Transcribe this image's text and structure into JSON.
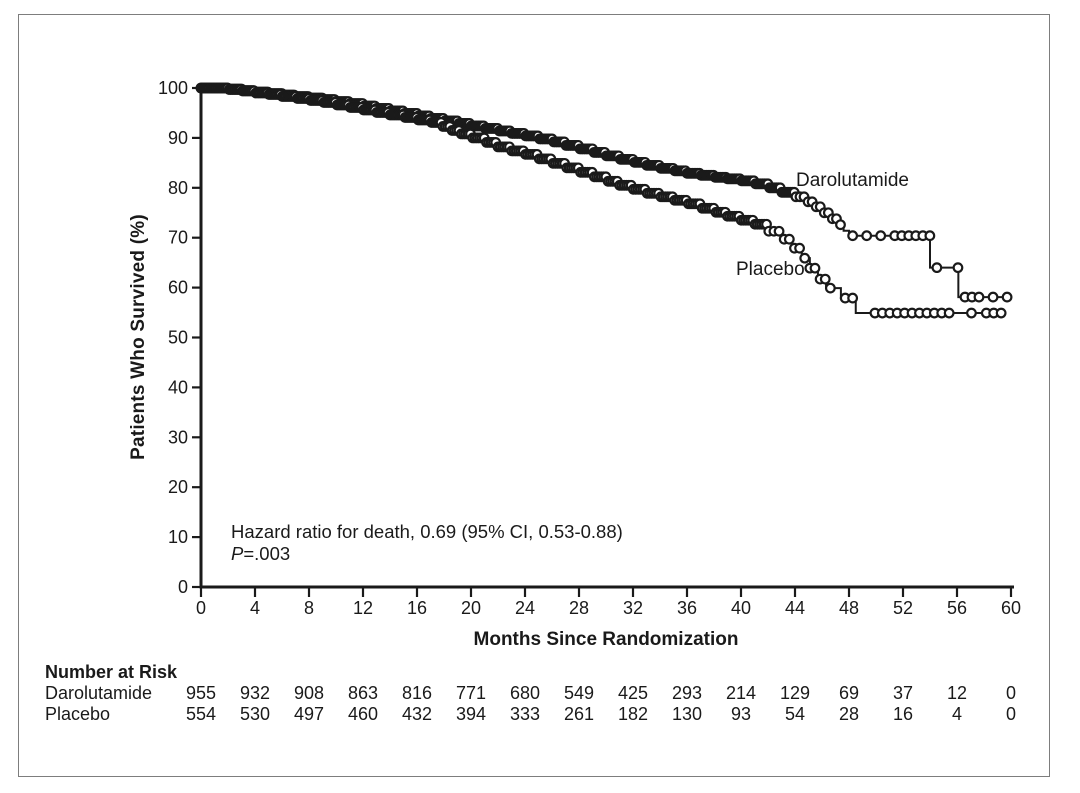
{
  "figure": {
    "background": "#ffffff",
    "ink_color": "#1a1a1a",
    "border_color": "#7d7d7d"
  },
  "chart_data": {
    "type": "line",
    "subtype": "kaplan-meier-step",
    "title": "",
    "xlabel": "Months Since Randomization",
    "ylabel": "Patients Who Survived (%)",
    "xlim": [
      0,
      60
    ],
    "ylim": [
      0,
      100
    ],
    "xticks": [
      0,
      4,
      8,
      12,
      16,
      20,
      24,
      28,
      32,
      36,
      40,
      44,
      48,
      52,
      56,
      60
    ],
    "yticks": [
      0,
      10,
      20,
      30,
      40,
      50,
      60,
      70,
      80,
      90,
      100
    ],
    "grid": false,
    "legend_position": "curve-labels-inline",
    "annotation": {
      "line1": "Hazard ratio for death, 0.69 (95% CI, 0.53-0.88)",
      "p_label": "P",
      "p_value": "=.003"
    },
    "series": [
      {
        "name": "Darolutamide",
        "marker": "open-circle-censor",
        "steps": [
          [
            0,
            100
          ],
          [
            2,
            99.8
          ],
          [
            3,
            99.5
          ],
          [
            4,
            99.2
          ],
          [
            5,
            98.9
          ],
          [
            6,
            98.6
          ],
          [
            7,
            98.3
          ],
          [
            8,
            98.0
          ],
          [
            9,
            97.7
          ],
          [
            10,
            97.3
          ],
          [
            11,
            96.9
          ],
          [
            12,
            96.4
          ],
          [
            13,
            95.9
          ],
          [
            14,
            95.4
          ],
          [
            15,
            94.9
          ],
          [
            16,
            94.4
          ],
          [
            17,
            93.9
          ],
          [
            18,
            93.4
          ],
          [
            19,
            92.9
          ],
          [
            20,
            92.4
          ],
          [
            21,
            91.9
          ],
          [
            22,
            91.4
          ],
          [
            23,
            90.9
          ],
          [
            24,
            90.4
          ],
          [
            25,
            89.8
          ],
          [
            26,
            89.2
          ],
          [
            27,
            88.5
          ],
          [
            28,
            87.8
          ],
          [
            29,
            87.1
          ],
          [
            30,
            86.4
          ],
          [
            31,
            85.7
          ],
          [
            32,
            85.1
          ],
          [
            33,
            84.5
          ],
          [
            34,
            83.9
          ],
          [
            35,
            83.4
          ],
          [
            36,
            82.9
          ],
          [
            37,
            82.5
          ],
          [
            38,
            82.1
          ],
          [
            39,
            81.8
          ],
          [
            40,
            81.4
          ],
          [
            41,
            80.8
          ],
          [
            42,
            80.0
          ],
          [
            43,
            79.1
          ],
          [
            44,
            78.2
          ],
          [
            44.8,
            77.2
          ],
          [
            45.5,
            76.2
          ],
          [
            46.1,
            75.0
          ],
          [
            46.6,
            73.8
          ],
          [
            47.1,
            72.6
          ],
          [
            47.6,
            71.4
          ],
          [
            48.0,
            70.4
          ],
          [
            54.0,
            64.0
          ],
          [
            56.1,
            58.1
          ],
          [
            59.8,
            58.1
          ]
        ],
        "mark_spacing": [
          [
            44,
            0.13
          ],
          [
            48,
            0.3
          ],
          [
            60,
            0.52
          ]
        ],
        "sparse_after_month": 47.5
      },
      {
        "name": "Placebo",
        "marker": "open-circle-censor",
        "steps": [
          [
            0,
            100
          ],
          [
            2,
            99.7
          ],
          [
            3,
            99.4
          ],
          [
            4,
            99.0
          ],
          [
            5,
            98.7
          ],
          [
            6,
            98.3
          ],
          [
            7,
            97.9
          ],
          [
            8,
            97.5
          ],
          [
            9,
            97.1
          ],
          [
            10,
            96.6
          ],
          [
            11,
            96.1
          ],
          [
            12,
            95.6
          ],
          [
            13,
            95.1
          ],
          [
            14,
            94.6
          ],
          [
            15,
            94.1
          ],
          [
            16,
            93.6
          ],
          [
            17,
            93.1
          ],
          [
            17.8,
            92.3
          ],
          [
            18.5,
            91.5
          ],
          [
            19.2,
            90.8
          ],
          [
            20,
            90.0
          ],
          [
            21,
            89.1
          ],
          [
            22,
            88.2
          ],
          [
            23,
            87.4
          ],
          [
            24,
            86.7
          ],
          [
            25,
            85.8
          ],
          [
            26,
            84.9
          ],
          [
            27,
            84.0
          ],
          [
            28,
            83.1
          ],
          [
            29,
            82.2
          ],
          [
            30,
            81.3
          ],
          [
            31,
            80.5
          ],
          [
            32,
            79.7
          ],
          [
            33,
            78.9
          ],
          [
            34,
            78.2
          ],
          [
            35,
            77.5
          ],
          [
            36,
            76.8
          ],
          [
            37,
            75.9
          ],
          [
            38,
            75.1
          ],
          [
            39,
            74.3
          ],
          [
            40,
            73.5
          ],
          [
            41,
            72.7
          ],
          [
            42,
            71.3
          ],
          [
            43,
            69.7
          ],
          [
            43.8,
            67.9
          ],
          [
            44.5,
            65.9
          ],
          [
            45.1,
            63.9
          ],
          [
            45.7,
            61.7
          ],
          [
            46.3,
            59.9
          ],
          [
            47.4,
            57.9
          ],
          [
            48.5,
            54.9
          ],
          [
            59.6,
            54.9
          ]
        ],
        "mark_spacing": [
          [
            17.8,
            0.14
          ],
          [
            42,
            0.17
          ],
          [
            46.3,
            0.38
          ],
          [
            60,
            0.55
          ]
        ],
        "sparse_after_month": 46.5
      }
    ]
  },
  "risk_table": {
    "title": "Number at Risk",
    "timepoints": [
      0,
      4,
      8,
      12,
      16,
      20,
      24,
      28,
      32,
      36,
      40,
      44,
      48,
      52,
      56,
      60
    ],
    "rows": [
      {
        "label": "Darolutamide",
        "values": [
          955,
          932,
          908,
          863,
          816,
          771,
          680,
          549,
          425,
          293,
          214,
          129,
          69,
          37,
          12,
          0
        ]
      },
      {
        "label": "Placebo",
        "values": [
          554,
          530,
          497,
          460,
          432,
          394,
          333,
          261,
          182,
          130,
          93,
          54,
          28,
          16,
          4,
          0
        ]
      }
    ]
  }
}
